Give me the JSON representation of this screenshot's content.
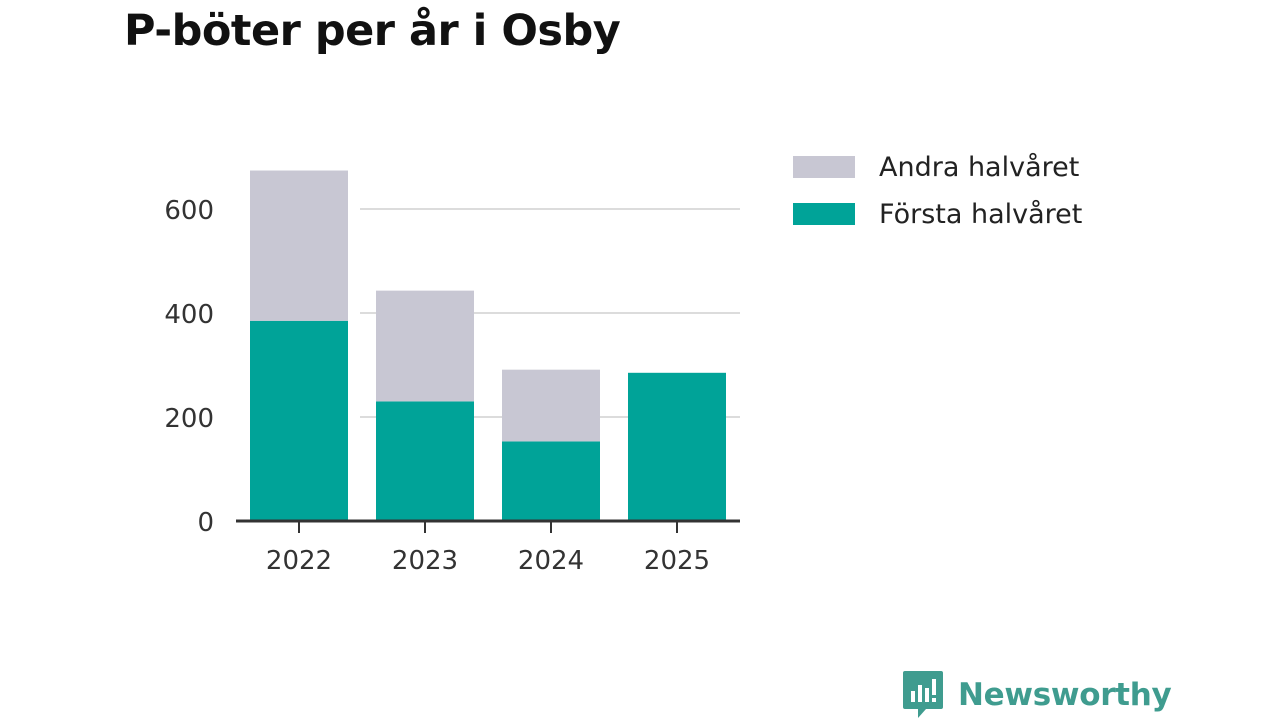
{
  "title": "P-böter per år i Osby",
  "brand": {
    "name": "Newsworthy",
    "icon": "newsworthy-logo-icon",
    "color": "#3f9c8f"
  },
  "chart_data": {
    "type": "bar",
    "stacked": true,
    "title": "P-böter per år i Osby",
    "categories": [
      "2022",
      "2023",
      "2024",
      "2025"
    ],
    "series": [
      {
        "name": "Första halvåret",
        "color": "#00a398",
        "values": [
          385,
          230,
          153,
          285
        ]
      },
      {
        "name": "Andra halvåret",
        "color": "#c8c7d3",
        "values": [
          289,
          213,
          138,
          0
        ]
      }
    ],
    "legend": {
      "position": "right",
      "items": [
        {
          "label": "Andra halvåret",
          "color": "#c8c7d3"
        },
        {
          "label": "Första halvåret",
          "color": "#00a398"
        }
      ]
    },
    "yticks": [
      "0",
      "200",
      "400",
      "600"
    ],
    "ylim": [
      0,
      700
    ],
    "xlabel": "",
    "ylabel": "",
    "grid": true
  }
}
